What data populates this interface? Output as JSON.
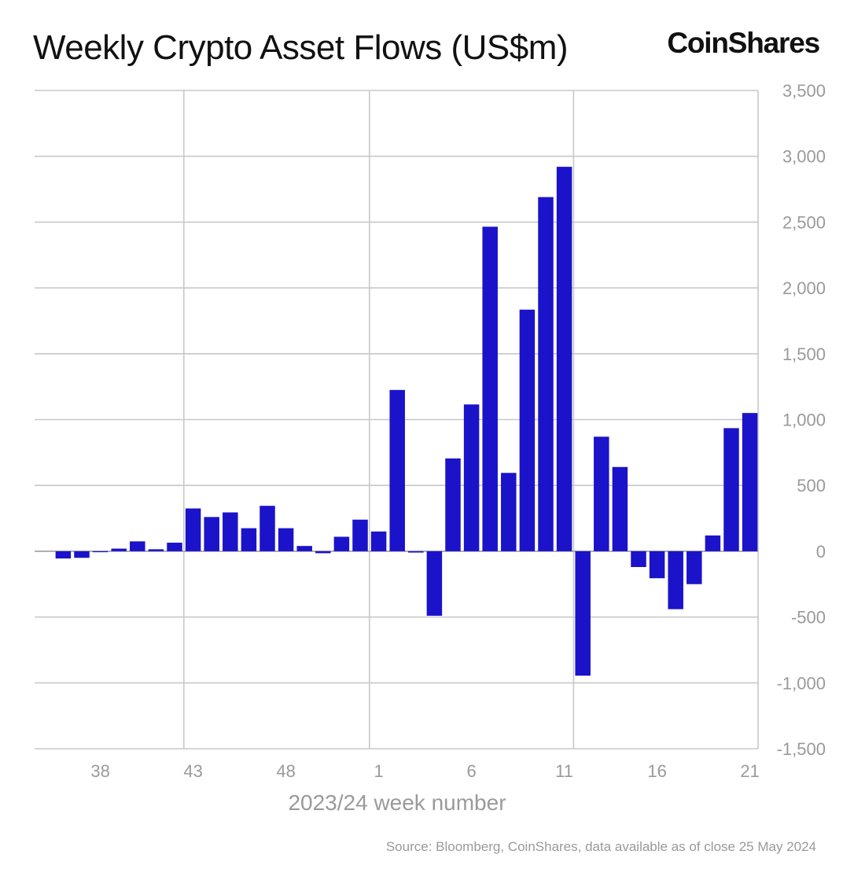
{
  "header": {
    "title": "Weekly Crypto Asset Flows (US$m)",
    "brand": "CoinShares"
  },
  "footer": {
    "source": "Source: Bloomberg, CoinShares, data available as of close 25 May 2024"
  },
  "colors": {
    "bar": "#1b13c9",
    "grid": "#c8c8c8",
    "tick_text": "#9a9a9a",
    "axis_title": "#9a9a9a"
  },
  "chart_data": {
    "type": "bar",
    "xlabel": "2023/24 week number",
    "ylabel": "",
    "ylim": [
      -1500,
      3500
    ],
    "yticks": [
      3500,
      3000,
      2500,
      2000,
      1500,
      1000,
      500,
      0,
      -500,
      -1000,
      -1500
    ],
    "ytick_labels": [
      "3,500",
      "3,000",
      "2,500",
      "2,000",
      "1,500",
      "1,000",
      "500",
      "0",
      "-500",
      "-1,000",
      "-1,500"
    ],
    "xtick_labels": [
      "38",
      "43",
      "48",
      "1",
      "6",
      "11",
      "16",
      "21"
    ],
    "vertical_grid_after_weeks": [
      42,
      52,
      11
    ],
    "grid": true,
    "y_axis_position": "right",
    "categories": [
      "36",
      "37",
      "38",
      "39",
      "40",
      "41",
      "42",
      "43",
      "44",
      "45",
      "46",
      "47",
      "48",
      "49",
      "50",
      "51",
      "52",
      "1",
      "2",
      "3",
      "4",
      "5",
      "6",
      "7",
      "8",
      "9",
      "10",
      "11",
      "12",
      "13",
      "14",
      "15",
      "16",
      "17",
      "18",
      "19",
      "20",
      "21"
    ],
    "values": [
      -55,
      -50,
      -5,
      20,
      75,
      15,
      65,
      325,
      260,
      295,
      175,
      345,
      175,
      40,
      -15,
      110,
      240,
      150,
      1225,
      -10,
      -490,
      705,
      1115,
      2465,
      595,
      1835,
      2690,
      2920,
      -945,
      870,
      640,
      -120,
      -205,
      -440,
      -250,
      120,
      935,
      1050
    ]
  }
}
